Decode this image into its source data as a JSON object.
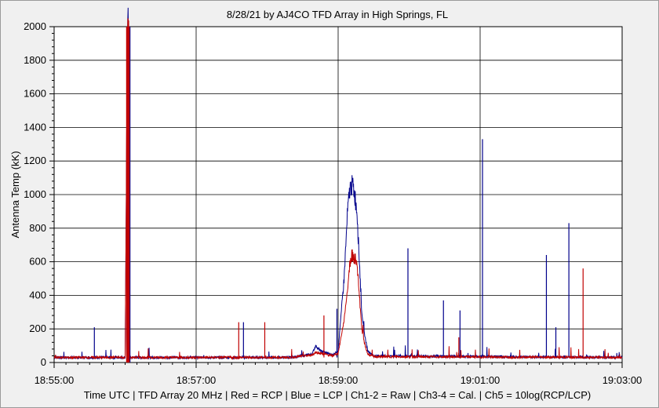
{
  "chart_data": {
    "type": "line",
    "title": "8/28/21  by  AJ4CO TFD Array  in  High Springs, FL",
    "footer": "Time UTC  |  TFD Array 20 MHz  |  Red = RCP  |  Blue = LCP  |  Ch1-2 = Raw  |  Ch3-4 = Cal.  |  Ch5 = 10log(RCP/LCP)",
    "ylabel": "Antenna Temp (kK)",
    "xlabel": "Time UTC",
    "ylim": [
      0,
      2000
    ],
    "xlim_seconds": [
      0,
      480
    ],
    "x_ticks": [
      {
        "t": 0,
        "label": "18:55:00"
      },
      {
        "t": 120,
        "label": "18:57:00"
      },
      {
        "t": 240,
        "label": "18:59:00"
      },
      {
        "t": 360,
        "label": "19:01:00"
      },
      {
        "t": 480,
        "label": "19:03:00"
      }
    ],
    "y_ticks": [
      "0",
      "200",
      "400",
      "600",
      "800",
      "1000",
      "1200",
      "1400",
      "1600",
      "1800",
      "2000"
    ],
    "grid": true,
    "colors": {
      "rcp": "#c00000",
      "lcp": "#00008b"
    },
    "series": [
      {
        "name": "Red = RCP",
        "color": "#c00000",
        "baseline": 30,
        "points": [
          [
            0,
            30
          ],
          [
            60,
            30
          ],
          [
            62,
            2000
          ],
          [
            63,
            2000
          ],
          [
            64,
            30
          ],
          [
            200,
            30
          ],
          [
            218,
            45
          ],
          [
            221,
            60
          ],
          [
            225,
            55
          ],
          [
            235,
            40
          ],
          [
            240,
            55
          ],
          [
            245,
            250
          ],
          [
            248,
            450
          ],
          [
            250,
            600
          ],
          [
            252,
            640
          ],
          [
            254,
            620
          ],
          [
            256,
            580
          ],
          [
            258,
            400
          ],
          [
            260,
            200
          ],
          [
            262,
            120
          ],
          [
            265,
            50
          ],
          [
            270,
            35
          ],
          [
            480,
            30
          ]
        ],
        "spikes": [
          [
            156,
            240
          ],
          [
            178,
            240
          ],
          [
            228,
            280
          ],
          [
            342,
            150
          ],
          [
            447,
            560
          ]
        ]
      },
      {
        "name": "Blue = LCP",
        "color": "#00008b",
        "baseline": 30,
        "points": [
          [
            0,
            30
          ],
          [
            60,
            30
          ],
          [
            62,
            2000
          ],
          [
            63,
            2000
          ],
          [
            64,
            30
          ],
          [
            200,
            30
          ],
          [
            218,
            50
          ],
          [
            221,
            100
          ],
          [
            225,
            70
          ],
          [
            235,
            45
          ],
          [
            240,
            70
          ],
          [
            245,
            500
          ],
          [
            248,
            900
          ],
          [
            250,
            1040
          ],
          [
            252,
            1060
          ],
          [
            254,
            1000
          ],
          [
            256,
            900
          ],
          [
            258,
            600
          ],
          [
            260,
            300
          ],
          [
            262,
            180
          ],
          [
            265,
            70
          ],
          [
            270,
            40
          ],
          [
            480,
            30
          ]
        ],
        "spikes": [
          [
            34,
            210
          ],
          [
            160,
            240
          ],
          [
            239,
            320
          ],
          [
            299,
            680
          ],
          [
            329,
            370
          ],
          [
            343,
            310
          ],
          [
            362,
            1330
          ],
          [
            416,
            640
          ],
          [
            424,
            210
          ],
          [
            435,
            830
          ]
        ]
      }
    ]
  }
}
